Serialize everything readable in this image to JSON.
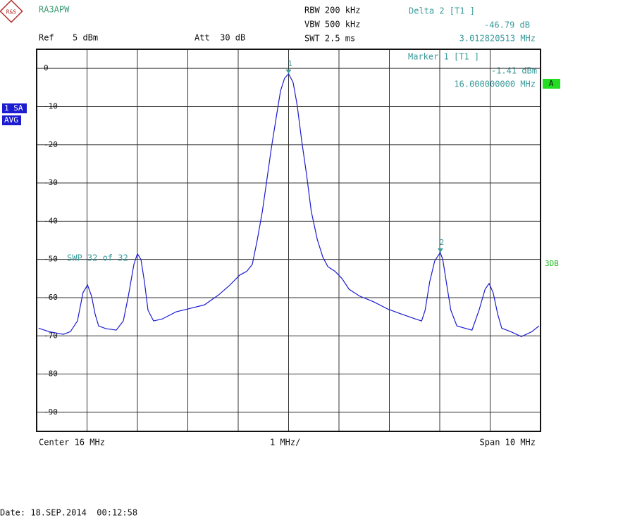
{
  "chart_data": {
    "type": "line",
    "logo": "R&S",
    "instrument_name": "RA3APW",
    "ref_label": "Ref",
    "ref_value": "5 dBm",
    "att": "Att  30 dB",
    "rbw": "RBW 200 kHz",
    "vbw": "VBW 500 kHz",
    "swt": "SWT 2.5 ms",
    "delta_title": "Delta 2 [T1 ]",
    "delta_level": "-46.79 dB",
    "delta_freq": "3.012820513 MHz",
    "marker_title": "Marker 1 [T1 ]",
    "marker_level": "-1.41 dBm",
    "marker_freq": "16.000000000 MHz",
    "trace_badges": [
      "1 SA",
      "AVG"
    ],
    "trace_flag": "A",
    "side_note": "3DB",
    "sweep_note": "SWP   32 of   32",
    "center": "Center 16 MHz",
    "per_div": "1 MHz/",
    "span": "Span 10 MHz",
    "date": "Date: 18.SEP.2014  00:12:58",
    "xlim": [
      11,
      21
    ],
    "xgrid": [
      11,
      12,
      13,
      14,
      15,
      16,
      17,
      18,
      19,
      20,
      21
    ],
    "ylim": [
      -95,
      5
    ],
    "yticks": [
      0,
      -10,
      -20,
      -30,
      -40,
      -50,
      -60,
      -70,
      -80,
      -90
    ],
    "grid": true,
    "x": [
      11.04,
      11.25,
      11.53,
      11.67,
      11.81,
      11.92,
      12.01,
      12.09,
      12.16,
      12.23,
      12.37,
      12.58,
      12.72,
      12.82,
      12.93,
      13.0,
      13.07,
      13.14,
      13.21,
      13.32,
      13.49,
      13.77,
      14.05,
      14.33,
      14.61,
      14.82,
      15.03,
      15.17,
      15.28,
      15.38,
      15.48,
      15.56,
      15.66,
      15.76,
      15.84,
      15.92,
      16.0,
      16.09,
      16.17,
      16.26,
      16.36,
      16.45,
      16.57,
      16.68,
      16.78,
      16.92,
      17.06,
      17.2,
      17.41,
      17.69,
      17.97,
      18.24,
      18.52,
      18.64,
      18.71,
      18.8,
      18.9,
      19.01,
      19.06,
      19.13,
      19.22,
      19.34,
      19.5,
      19.64,
      19.78,
      19.9,
      19.98,
      20.06,
      20.15,
      20.23,
      20.41,
      20.62,
      20.83,
      20.97
    ],
    "series": [
      {
        "name": "1 SA",
        "color": "#1c1cd0",
        "values": [
          -68.0,
          -68.9,
          -69.6,
          -68.9,
          -66.1,
          -58.7,
          -56.7,
          -59.6,
          -64.3,
          -67.4,
          -68.1,
          -68.5,
          -66.1,
          -59.6,
          -51.3,
          -48.5,
          -50.0,
          -55.9,
          -63.3,
          -66.1,
          -65.6,
          -63.7,
          -62.8,
          -61.9,
          -59.3,
          -56.9,
          -54.1,
          -53.1,
          -51.3,
          -44.8,
          -37.4,
          -30.0,
          -20.7,
          -12.4,
          -5.9,
          -2.6,
          -1.4,
          -3.7,
          -9.6,
          -18.9,
          -28.1,
          -37.4,
          -44.8,
          -49.4,
          -51.9,
          -53.1,
          -55.0,
          -57.8,
          -59.6,
          -61.1,
          -63.0,
          -64.3,
          -65.6,
          -66.1,
          -63.3,
          -55.9,
          -50.4,
          -48.2,
          -50.0,
          -55.9,
          -63.3,
          -67.4,
          -68.0,
          -68.5,
          -63.3,
          -57.8,
          -56.3,
          -58.7,
          -64.3,
          -68.0,
          -68.9,
          -70.2,
          -68.9,
          -67.4
        ]
      }
    ],
    "markers": [
      {
        "label": "1",
        "x": 16.0,
        "y": -1.41
      },
      {
        "label": "2",
        "x": 19.012820513,
        "y": -48.2
      }
    ]
  }
}
